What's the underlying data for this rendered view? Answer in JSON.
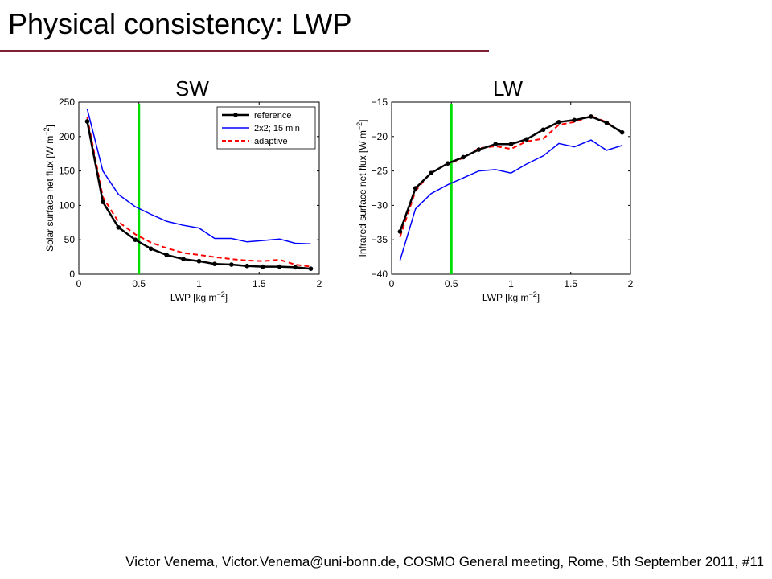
{
  "slide": {
    "title": "Physical consistency: LWP",
    "footer": "Victor Venema, Victor.Venema@uni-bonn.de, COSMO General meeting, Rome, 5th September 2011, #11"
  },
  "colors": {
    "title_rule": "#7f1f33",
    "reference": "#000000",
    "two_by_two": "#0000ff",
    "adaptive": "#ff0000",
    "marker_line": "#00dd00"
  },
  "chart_data": [
    {
      "type": "line",
      "panel_label": "SW",
      "xlabel": "LWP [kg m",
      "xlabel_sup": "−2",
      "xlabel_end": "]",
      "ylabel": "Solar surface net flux [W m",
      "ylabel_sup": "−2",
      "ylabel_end": "]",
      "xlim": [
        0,
        2
      ],
      "ylim": [
        0,
        250
      ],
      "xticks": [
        0,
        0.5,
        1,
        1.5,
        2
      ],
      "xtick_labels": [
        "0",
        "0.5",
        "1",
        "1.5",
        "2"
      ],
      "yticks": [
        0,
        50,
        100,
        150,
        200,
        250
      ],
      "ytick_labels": [
        "0",
        "50",
        "100",
        "150",
        "200",
        "250"
      ],
      "vline_x": 0.5,
      "legend_position": "top-right",
      "grid": false,
      "x": [
        0.07,
        0.2,
        0.33,
        0.47,
        0.6,
        0.73,
        0.87,
        1.0,
        1.13,
        1.27,
        1.4,
        1.53,
        1.67,
        1.8,
        1.93
      ],
      "series": [
        {
          "name": "reference",
          "style": "solid-marker",
          "color": "#000000",
          "values": [
            222,
            105,
            68,
            50,
            37,
            28,
            22,
            19,
            15,
            14,
            12,
            11,
            11,
            10,
            8
          ]
        },
        {
          "name": "2x2; 15 min",
          "style": "solid",
          "color": "#0000ff",
          "values": [
            240,
            150,
            116,
            98,
            87,
            77,
            71,
            67,
            52,
            52,
            47,
            49,
            51,
            45,
            44
          ]
        },
        {
          "name": "adaptive",
          "style": "dashed",
          "color": "#ff0000",
          "values": [
            228,
            112,
            76,
            58,
            46,
            38,
            31,
            28,
            25,
            22,
            20,
            19,
            21,
            14,
            11
          ]
        }
      ]
    },
    {
      "type": "line",
      "panel_label": "LW",
      "xlabel": "LWP [kg m",
      "xlabel_sup": "−2",
      "xlabel_end": "]",
      "ylabel": "Infrared surface net flux [W m",
      "ylabel_sup": "−2",
      "ylabel_end": "]",
      "xlim": [
        0,
        2
      ],
      "ylim": [
        -40,
        -15
      ],
      "xticks": [
        0,
        0.5,
        1,
        1.5,
        2
      ],
      "xtick_labels": [
        "0",
        "0.5",
        "1",
        "1.5",
        "2"
      ],
      "yticks": [
        -40,
        -35,
        -30,
        -25,
        -20,
        -15
      ],
      "ytick_labels": [
        "−40",
        "−35",
        "−30",
        "−25",
        "−20",
        "−15"
      ],
      "vline_x": 0.5,
      "grid": false,
      "x": [
        0.07,
        0.2,
        0.33,
        0.47,
        0.6,
        0.73,
        0.87,
        1.0,
        1.13,
        1.27,
        1.4,
        1.53,
        1.67,
        1.8,
        1.93
      ],
      "series": [
        {
          "name": "reference",
          "style": "solid-marker",
          "color": "#000000",
          "values": [
            -33.8,
            -27.5,
            -25.3,
            -23.9,
            -23.0,
            -21.9,
            -21.1,
            -21.1,
            -20.4,
            -19.0,
            -17.9,
            -17.6,
            -17.1,
            -18.0,
            -19.4
          ]
        },
        {
          "name": "2x2; 15 min",
          "style": "solid",
          "color": "#0000ff",
          "values": [
            -38.0,
            -30.5,
            -28.3,
            -27.0,
            -26.0,
            -25.0,
            -24.8,
            -25.3,
            -24.0,
            -22.8,
            -21.0,
            -21.5,
            -20.5,
            -22.0,
            -21.3
          ]
        },
        {
          "name": "adaptive",
          "style": "dashed",
          "color": "#ff0000",
          "values": [
            -34.6,
            -27.9,
            -25.2,
            -24.0,
            -23.1,
            -21.7,
            -21.4,
            -21.8,
            -20.7,
            -20.3,
            -18.3,
            -17.9,
            -17.0,
            -17.9,
            -19.5
          ]
        }
      ]
    }
  ]
}
